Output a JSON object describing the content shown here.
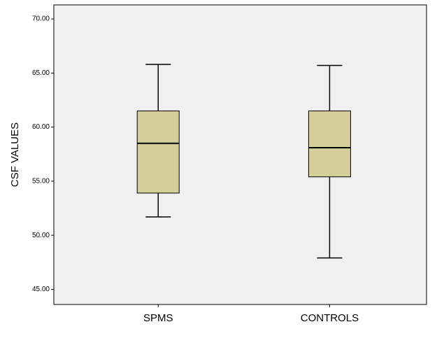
{
  "chart_data": {
    "type": "box",
    "y_label": "CSF VALUES",
    "categories": [
      "SPMS",
      "CONTROLS"
    ],
    "boxes": [
      {
        "min": 51.7,
        "q1": 53.9,
        "median": 58.5,
        "q3": 61.5,
        "max": 65.8
      },
      {
        "min": 47.9,
        "q1": 55.4,
        "median": 58.1,
        "q3": 61.5,
        "max": 65.7
      }
    ],
    "color": "#d3ce9a",
    "ylim": [
      43.6,
      71.3
    ],
    "yticks": [
      {
        "value": 45,
        "label": "45.00"
      },
      {
        "value": 50,
        "label": "50.00"
      },
      {
        "value": 55,
        "label": "55.00"
      },
      {
        "value": 60,
        "label": "60.00"
      },
      {
        "value": 65,
        "label": "65.00"
      },
      {
        "value": 70,
        "label": "70.00"
      }
    ]
  }
}
